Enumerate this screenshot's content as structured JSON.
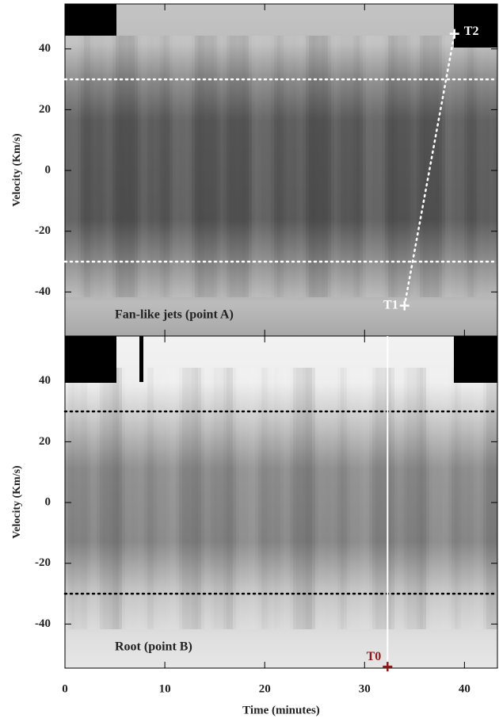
{
  "chart_data": [
    {
      "type": "image",
      "label": "Fan-like jets (point A)",
      "ylabel": "Velocity (Km/s)",
      "xlim": [
        0,
        43.3
      ],
      "ylim": [
        -54.5,
        54.8
      ],
      "xticks": [
        0,
        10,
        20,
        30,
        40
      ],
      "yticks": [
        -40,
        -20,
        0,
        20,
        40
      ],
      "show_xtick_labels": false,
      "hlines": [
        30,
        -30
      ],
      "hline_color": "#ffffff",
      "markers": [
        {
          "label": "T1",
          "x": 34.0,
          "y": -44.5
        },
        {
          "label": "T2",
          "x": 39.0,
          "y": 45
        }
      ],
      "marker_color": "#ffffff",
      "connect_markers": true
    },
    {
      "type": "image",
      "label": "Root (point B)",
      "ylabel": "Velocity (Km/s)",
      "xlabel": "Time (minutes)",
      "xlim": [
        0,
        43.3
      ],
      "ylim": [
        -54.5,
        54.8
      ],
      "xticks": [
        0,
        10,
        20,
        30,
        40
      ],
      "yticks": [
        -40,
        -20,
        0,
        20,
        40
      ],
      "show_xtick_labels": true,
      "hlines": [
        30,
        -30
      ],
      "hline_color": "#000000",
      "vline": 32.3,
      "vline_color": "#ffffff",
      "markers": [
        {
          "label": "T0",
          "x": 32.3,
          "y": -54
        }
      ],
      "marker_color": "#8b1a1a",
      "connect_markers": false
    }
  ]
}
